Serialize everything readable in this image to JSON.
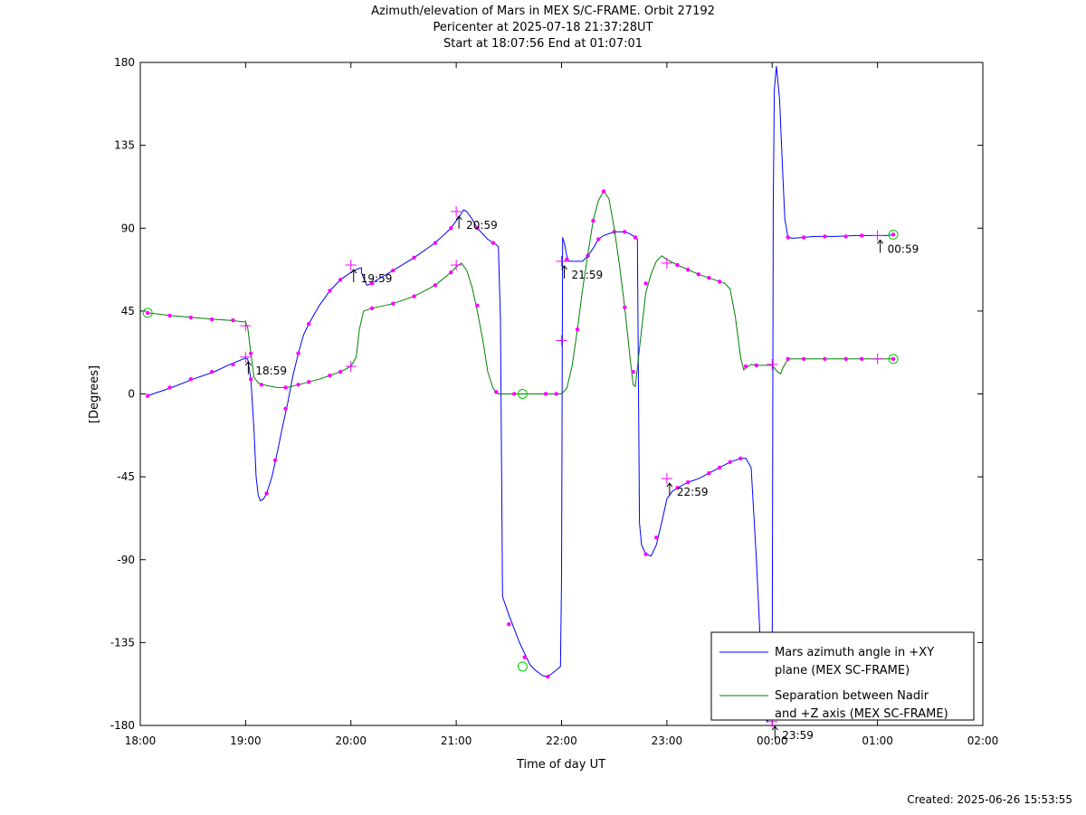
{
  "titles": [
    "Azimuth/elevation of Mars in MEX S/C-FRAME.  Orbit 27192",
    "Pericenter at 2025-07-18 21:37:28UT",
    "Start at 18:07:56 End at 01:07:01"
  ],
  "created": "Created: 2025-06-26 15:53:55",
  "chart_data": {
    "type": "line",
    "title": "Azimuth/elevation of Mars in MEX S/C-FRAME.  Orbit 27192",
    "xlabel": "Time of day UT",
    "ylabel": "[Degrees]",
    "xlim": [
      0,
      8
    ],
    "ylim": [
      -180,
      180
    ],
    "xticks": [
      {
        "v": 0,
        "label": "18:00"
      },
      {
        "v": 1,
        "label": "19:00"
      },
      {
        "v": 2,
        "label": "20:00"
      },
      {
        "v": 3,
        "label": "21:00"
      },
      {
        "v": 4,
        "label": "22:00"
      },
      {
        "v": 5,
        "label": "23:00"
      },
      {
        "v": 6,
        "label": "00:00"
      },
      {
        "v": 7,
        "label": "01:00"
      },
      {
        "v": 8,
        "label": "02:00"
      }
    ],
    "yticks": [
      180,
      135,
      90,
      45,
      0,
      -45,
      -90,
      -135,
      -180
    ],
    "grid": false,
    "legend_position": "bottom-right",
    "series": [
      {
        "name": "Mars azimuth angle in +XY plane (MEX SC-FRAME)",
        "legend_lines": [
          "Mars azimuth angle in +XY",
          "plane (MEX SC-FRAME)"
        ],
        "color": "#0000ff",
        "points": [
          [
            0.07,
            -1
          ],
          [
            0.3,
            3.5
          ],
          [
            0.5,
            8
          ],
          [
            0.7,
            12
          ],
          [
            0.85,
            16
          ],
          [
            1.0,
            19.5
          ],
          [
            1.02,
            19
          ],
          [
            1.05,
            8
          ],
          [
            1.08,
            -20
          ],
          [
            1.1,
            -45
          ],
          [
            1.12,
            -55
          ],
          [
            1.14,
            -58
          ],
          [
            1.17,
            -57
          ],
          [
            1.2,
            -54
          ],
          [
            1.25,
            -45
          ],
          [
            1.3,
            -32
          ],
          [
            1.35,
            -18
          ],
          [
            1.4,
            -5
          ],
          [
            1.45,
            10
          ],
          [
            1.5,
            22
          ],
          [
            1.55,
            32
          ],
          [
            1.6,
            38
          ],
          [
            1.65,
            43
          ],
          [
            1.7,
            48
          ],
          [
            1.8,
            56
          ],
          [
            1.9,
            62
          ],
          [
            2.0,
            66
          ],
          [
            2.07,
            68
          ],
          [
            2.1,
            68.5
          ],
          [
            2.1,
            66
          ],
          [
            2.12,
            63
          ],
          [
            2.15,
            59
          ],
          [
            2.2,
            60
          ],
          [
            2.25,
            62
          ],
          [
            2.4,
            67
          ],
          [
            2.6,
            74
          ],
          [
            2.8,
            82
          ],
          [
            2.95,
            90
          ],
          [
            3.0,
            94
          ],
          [
            3.05,
            98
          ],
          [
            3.07,
            100
          ],
          [
            3.1,
            99
          ],
          [
            3.15,
            95
          ],
          [
            3.2,
            90
          ],
          [
            3.3,
            84
          ],
          [
            3.35,
            82
          ],
          [
            3.38,
            81
          ],
          [
            3.4,
            80
          ],
          [
            3.42,
            40
          ],
          [
            3.44,
            -110
          ],
          [
            3.5,
            -120
          ],
          [
            3.6,
            -135
          ],
          [
            3.7,
            -147
          ],
          [
            3.75,
            -150
          ],
          [
            3.82,
            -153
          ],
          [
            3.87,
            -153.5
          ],
          [
            3.95,
            -150
          ],
          [
            3.99,
            -148
          ],
          [
            4.0,
            -100
          ],
          [
            4.01,
            85
          ],
          [
            4.03,
            81
          ],
          [
            4.05,
            75
          ],
          [
            4.07,
            72
          ],
          [
            4.15,
            72
          ],
          [
            4.2,
            72
          ],
          [
            4.25,
            75
          ],
          [
            4.3,
            79
          ],
          [
            4.35,
            84
          ],
          [
            4.4,
            86
          ],
          [
            4.5,
            88
          ],
          [
            4.6,
            88
          ],
          [
            4.65,
            87
          ],
          [
            4.7,
            85
          ],
          [
            4.72,
            84
          ],
          [
            4.74,
            -70
          ],
          [
            4.76,
            -82
          ],
          [
            4.8,
            -87
          ],
          [
            4.85,
            -88
          ],
          [
            4.9,
            -82
          ],
          [
            4.95,
            -70
          ],
          [
            5.0,
            -57
          ],
          [
            5.05,
            -53
          ],
          [
            5.1,
            -51
          ],
          [
            5.2,
            -48
          ],
          [
            5.3,
            -46
          ],
          [
            5.4,
            -43
          ],
          [
            5.5,
            -40
          ],
          [
            5.6,
            -37
          ],
          [
            5.65,
            -36
          ],
          [
            5.7,
            -35
          ],
          [
            5.75,
            -35
          ],
          [
            5.8,
            -40
          ],
          [
            5.85,
            -90
          ],
          [
            5.9,
            -150
          ],
          [
            5.95,
            -178
          ],
          [
            5.99,
            -175
          ],
          [
            6.0,
            -140
          ],
          [
            6.01,
            100
          ],
          [
            6.02,
            165
          ],
          [
            6.04,
            178
          ],
          [
            6.07,
            160
          ],
          [
            6.1,
            120
          ],
          [
            6.12,
            95
          ],
          [
            6.15,
            85
          ],
          [
            6.2,
            84.5
          ],
          [
            6.4,
            85.5
          ],
          [
            6.6,
            85.5
          ],
          [
            6.8,
            86
          ],
          [
            7.0,
            86
          ],
          [
            7.1,
            86
          ],
          [
            7.15,
            86.5
          ]
        ],
        "dots": [
          [
            0.07,
            -1
          ],
          [
            0.28,
            3.5
          ],
          [
            0.48,
            8
          ],
          [
            0.68,
            12
          ],
          [
            0.88,
            16
          ],
          [
            1.05,
            8
          ],
          [
            1.2,
            -54
          ],
          [
            1.28,
            -36
          ],
          [
            1.38,
            -8
          ],
          [
            1.5,
            22
          ],
          [
            1.6,
            38
          ],
          [
            1.8,
            56
          ],
          [
            1.9,
            62
          ],
          [
            2.2,
            60
          ],
          [
            2.4,
            67
          ],
          [
            2.6,
            74
          ],
          [
            2.8,
            82
          ],
          [
            2.95,
            90
          ],
          [
            3.2,
            90
          ],
          [
            3.35,
            82
          ],
          [
            3.5,
            -125
          ],
          [
            3.65,
            -143
          ],
          [
            3.87,
            -153.5
          ],
          [
            4.05,
            73
          ],
          [
            4.25,
            75
          ],
          [
            4.35,
            84
          ],
          [
            4.5,
            88
          ],
          [
            4.6,
            88
          ],
          [
            4.7,
            85
          ],
          [
            4.8,
            -87
          ],
          [
            4.9,
            -78
          ],
          [
            5.1,
            -51
          ],
          [
            5.2,
            -48
          ],
          [
            5.4,
            -43
          ],
          [
            5.5,
            -40
          ],
          [
            5.6,
            -37
          ],
          [
            5.7,
            -35
          ],
          [
            6.15,
            85
          ],
          [
            6.3,
            85
          ],
          [
            6.5,
            85.5
          ],
          [
            6.7,
            85.5
          ],
          [
            6.85,
            86
          ],
          [
            7.15,
            86.5
          ]
        ],
        "plus": [
          [
            1.0,
            20
          ],
          [
            2.0,
            70
          ],
          [
            3.0,
            99
          ],
          [
            4.0,
            72
          ],
          [
            5.0,
            -46
          ],
          [
            6.0,
            -178
          ],
          [
            7.0,
            86
          ]
        ],
        "circles": [
          [
            3.63,
            -148
          ],
          [
            7.15,
            86.5
          ]
        ]
      },
      {
        "name": "Separation between Nadir and +Z axis (MEX SC-FRAME)",
        "legend_lines": [
          "Separation between Nadir",
          "and +Z axis (MEX SC-FRAME)"
        ],
        "color": "#008000",
        "points": [
          [
            0.07,
            44
          ],
          [
            0.3,
            42.5
          ],
          [
            0.5,
            41.5
          ],
          [
            0.7,
            40.5
          ],
          [
            0.85,
            40
          ],
          [
            1.0,
            39
          ],
          [
            1.02,
            36
          ],
          [
            1.05,
            22
          ],
          [
            1.08,
            9
          ],
          [
            1.12,
            6
          ],
          [
            1.2,
            4.5
          ],
          [
            1.3,
            3.5
          ],
          [
            1.4,
            3.5
          ],
          [
            1.5,
            5
          ],
          [
            1.6,
            6.5
          ],
          [
            1.7,
            8
          ],
          [
            1.8,
            10
          ],
          [
            1.9,
            12
          ],
          [
            2.0,
            15
          ],
          [
            2.05,
            20
          ],
          [
            2.08,
            35
          ],
          [
            2.12,
            45
          ],
          [
            2.2,
            46.5
          ],
          [
            2.4,
            49
          ],
          [
            2.6,
            53
          ],
          [
            2.8,
            59
          ],
          [
            2.95,
            66
          ],
          [
            3.0,
            69
          ],
          [
            3.05,
            71
          ],
          [
            3.1,
            67
          ],
          [
            3.15,
            58
          ],
          [
            3.2,
            45
          ],
          [
            3.25,
            30
          ],
          [
            3.3,
            12
          ],
          [
            3.35,
            3
          ],
          [
            3.4,
            0
          ],
          [
            3.5,
            0
          ],
          [
            3.6,
            0
          ],
          [
            3.7,
            0
          ],
          [
            3.8,
            0
          ],
          [
            3.9,
            0
          ],
          [
            4.0,
            0
          ],
          [
            4.05,
            3
          ],
          [
            4.1,
            15
          ],
          [
            4.15,
            35
          ],
          [
            4.2,
            57
          ],
          [
            4.25,
            76
          ],
          [
            4.3,
            94
          ],
          [
            4.35,
            105
          ],
          [
            4.4,
            110
          ],
          [
            4.45,
            106
          ],
          [
            4.5,
            90
          ],
          [
            4.55,
            70
          ],
          [
            4.6,
            47
          ],
          [
            4.65,
            20
          ],
          [
            4.68,
            5
          ],
          [
            4.7,
            4
          ],
          [
            4.75,
            30
          ],
          [
            4.8,
            55
          ],
          [
            4.85,
            65
          ],
          [
            4.9,
            72
          ],
          [
            4.95,
            75
          ],
          [
            5.0,
            73
          ],
          [
            5.1,
            70
          ],
          [
            5.2,
            67.5
          ],
          [
            5.3,
            65
          ],
          [
            5.4,
            63
          ],
          [
            5.5,
            61
          ],
          [
            5.55,
            60
          ],
          [
            5.6,
            57
          ],
          [
            5.65,
            42
          ],
          [
            5.7,
            20
          ],
          [
            5.73,
            13
          ],
          [
            5.75,
            14
          ],
          [
            5.8,
            16
          ],
          [
            5.85,
            15.5
          ],
          [
            5.95,
            15.5
          ],
          [
            6.0,
            15.5
          ],
          [
            6.05,
            12
          ],
          [
            6.08,
            11
          ],
          [
            6.1,
            14
          ],
          [
            6.15,
            19
          ],
          [
            6.3,
            19
          ],
          [
            6.5,
            19
          ],
          [
            6.7,
            19
          ],
          [
            6.9,
            19
          ],
          [
            7.0,
            19
          ],
          [
            7.15,
            19
          ]
        ],
        "dots": [
          [
            0.07,
            44
          ],
          [
            0.28,
            42.5
          ],
          [
            0.48,
            41.5
          ],
          [
            0.68,
            40.5
          ],
          [
            0.88,
            40
          ],
          [
            1.05,
            22
          ],
          [
            1.15,
            5
          ],
          [
            1.38,
            3.5
          ],
          [
            1.5,
            5
          ],
          [
            1.6,
            6.5
          ],
          [
            1.8,
            10
          ],
          [
            1.9,
            12
          ],
          [
            2.2,
            46.5
          ],
          [
            2.4,
            49
          ],
          [
            2.6,
            53
          ],
          [
            2.8,
            59
          ],
          [
            2.95,
            66
          ],
          [
            3.2,
            48
          ],
          [
            3.38,
            1
          ],
          [
            3.55,
            0
          ],
          [
            3.85,
            0
          ],
          [
            3.95,
            0
          ],
          [
            4.15,
            35
          ],
          [
            4.3,
            94
          ],
          [
            4.4,
            110
          ],
          [
            4.6,
            47
          ],
          [
            4.68,
            12
          ],
          [
            4.8,
            60
          ],
          [
            5.1,
            70
          ],
          [
            5.2,
            67.5
          ],
          [
            5.3,
            65
          ],
          [
            5.4,
            63
          ],
          [
            5.5,
            61
          ],
          [
            5.75,
            15
          ],
          [
            5.85,
            15.5
          ],
          [
            6.15,
            19
          ],
          [
            6.3,
            19
          ],
          [
            6.5,
            19
          ],
          [
            6.7,
            19
          ],
          [
            6.85,
            19
          ],
          [
            7.15,
            19
          ]
        ],
        "plus": [
          [
            1.0,
            37
          ],
          [
            2.0,
            15
          ],
          [
            3.0,
            70
          ],
          [
            4.0,
            29
          ],
          [
            5.0,
            71
          ],
          [
            6.0,
            16
          ],
          [
            7.0,
            19
          ]
        ],
        "circles": [
          [
            0.07,
            44
          ],
          [
            3.63,
            0
          ],
          [
            7.15,
            19
          ]
        ]
      }
    ],
    "annotations": [
      {
        "x": 1.0,
        "y": 20,
        "label": "18:59"
      },
      {
        "x": 2.0,
        "y": 70,
        "label": "19:59"
      },
      {
        "x": 3.0,
        "y": 99,
        "label": "20:59"
      },
      {
        "x": 4.0,
        "y": 72,
        "label": "21:59"
      },
      {
        "x": 5.0,
        "y": -46,
        "label": "22:59"
      },
      {
        "x": 6.0,
        "y": -178,
        "label": "23:59"
      },
      {
        "x": 7.0,
        "y": 86,
        "label": "00:59"
      }
    ],
    "marker_color": "#ff00ff",
    "circle_color": "#00cc00"
  }
}
